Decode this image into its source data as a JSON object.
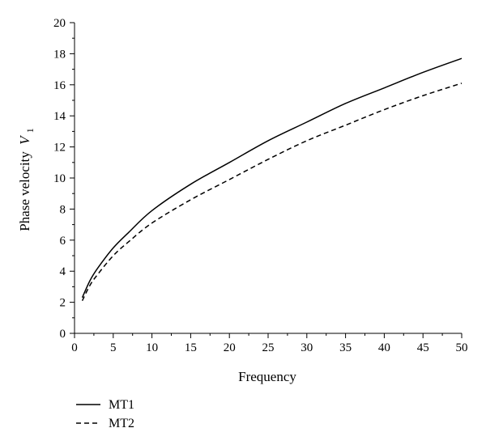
{
  "chart_data": {
    "type": "line",
    "title": "",
    "xlabel": "Frequency",
    "ylabel": "Phase velocity",
    "ylabel_symbol": "V",
    "ylabel_subscript": "1",
    "xlim": [
      0,
      50
    ],
    "ylim": [
      0,
      20
    ],
    "x_ticks": [
      0,
      5,
      10,
      15,
      20,
      25,
      30,
      35,
      40,
      45,
      50
    ],
    "y_ticks": [
      0,
      2,
      4,
      6,
      8,
      10,
      12,
      14,
      16,
      18,
      20
    ],
    "grid": false,
    "legend_position": "bottom-left",
    "x": [
      1,
      2,
      3,
      5,
      7,
      10,
      15,
      20,
      25,
      30,
      35,
      40,
      45,
      50
    ],
    "series": [
      {
        "name": "MT1",
        "style": "solid",
        "color": "#000000",
        "values": [
          2.3,
          3.4,
          4.2,
          5.5,
          6.5,
          7.9,
          9.6,
          11.0,
          12.4,
          13.6,
          14.8,
          15.8,
          16.8,
          17.7
        ]
      },
      {
        "name": "MT2",
        "style": "dashed",
        "color": "#000000",
        "values": [
          2.1,
          3.1,
          3.8,
          5.0,
          5.9,
          7.1,
          8.6,
          9.9,
          11.2,
          12.4,
          13.4,
          14.4,
          15.3,
          16.1
        ]
      }
    ]
  }
}
